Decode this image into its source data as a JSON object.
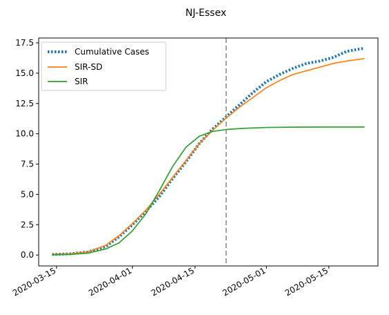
{
  "chart_data": {
    "type": "line",
    "title": "NJ-Essex",
    "xlabel": "",
    "ylabel": "",
    "x_start": "2020-03-14",
    "x_end": "2020-05-23",
    "xlim": [
      "2020-03-11",
      "2020-05-26"
    ],
    "ylim": [
      -0.9,
      17.9
    ],
    "y_ticks": [
      0.0,
      2.5,
      5.0,
      7.5,
      10.0,
      12.5,
      15.0,
      17.5
    ],
    "y_tick_labels": [
      "0.0",
      "2.5",
      "5.0",
      "7.5",
      "10.0",
      "12.5",
      "15.0",
      "17.5"
    ],
    "x_ticks": [
      "2020-03-15",
      "2020-04-01",
      "2020-04-15",
      "2020-05-01",
      "2020-05-15"
    ],
    "vline": {
      "x": "2020-04-22",
      "color": "#7f7f7f",
      "style": "dashed"
    },
    "legend_position": "top-left",
    "grid": false,
    "series": [
      {
        "name": "Cumulative Cases",
        "color": "#1f77b4",
        "style": "dotted",
        "points": [
          [
            "2020-03-14",
            0.05
          ],
          [
            "2020-03-18",
            0.1
          ],
          [
            "2020-03-22",
            0.25
          ],
          [
            "2020-03-26",
            0.7
          ],
          [
            "2020-03-29",
            1.5
          ],
          [
            "2020-04-01",
            2.5
          ],
          [
            "2020-04-04",
            3.6
          ],
          [
            "2020-04-07",
            4.8
          ],
          [
            "2020-04-10",
            6.3
          ],
          [
            "2020-04-13",
            7.7
          ],
          [
            "2020-04-16",
            9.2
          ],
          [
            "2020-04-19",
            10.4
          ],
          [
            "2020-04-22",
            11.4
          ],
          [
            "2020-04-25",
            12.4
          ],
          [
            "2020-04-28",
            13.4
          ],
          [
            "2020-05-01",
            14.3
          ],
          [
            "2020-05-04",
            14.9
          ],
          [
            "2020-05-07",
            15.4
          ],
          [
            "2020-05-10",
            15.8
          ],
          [
            "2020-05-13",
            16.0
          ],
          [
            "2020-05-16",
            16.3
          ],
          [
            "2020-05-19",
            16.8
          ],
          [
            "2020-05-22",
            17.0
          ],
          [
            "2020-05-23",
            17.05
          ]
        ]
      },
      {
        "name": "SIR-SD",
        "color": "#ff7f0e",
        "style": "solid",
        "points": [
          [
            "2020-03-14",
            0.05
          ],
          [
            "2020-03-18",
            0.1
          ],
          [
            "2020-03-22",
            0.25
          ],
          [
            "2020-03-26",
            0.8
          ],
          [
            "2020-03-29",
            1.6
          ],
          [
            "2020-04-01",
            2.6
          ],
          [
            "2020-04-04",
            3.7
          ],
          [
            "2020-04-07",
            5.0
          ],
          [
            "2020-04-10",
            6.4
          ],
          [
            "2020-04-13",
            7.8
          ],
          [
            "2020-04-16",
            9.2
          ],
          [
            "2020-04-19",
            10.3
          ],
          [
            "2020-04-22",
            11.3
          ],
          [
            "2020-04-25",
            12.2
          ],
          [
            "2020-04-28",
            13.0
          ],
          [
            "2020-05-01",
            13.8
          ],
          [
            "2020-05-04",
            14.4
          ],
          [
            "2020-05-07",
            14.9
          ],
          [
            "2020-05-10",
            15.2
          ],
          [
            "2020-05-13",
            15.5
          ],
          [
            "2020-05-16",
            15.8
          ],
          [
            "2020-05-19",
            16.0
          ],
          [
            "2020-05-23",
            16.2
          ]
        ]
      },
      {
        "name": "SIR",
        "color": "#2ca02c",
        "style": "solid",
        "points": [
          [
            "2020-03-14",
            0.02
          ],
          [
            "2020-03-18",
            0.05
          ],
          [
            "2020-03-22",
            0.15
          ],
          [
            "2020-03-26",
            0.5
          ],
          [
            "2020-03-29",
            1.0
          ],
          [
            "2020-04-01",
            2.0
          ],
          [
            "2020-04-04",
            3.4
          ],
          [
            "2020-04-07",
            5.3
          ],
          [
            "2020-04-10",
            7.3
          ],
          [
            "2020-04-13",
            8.9
          ],
          [
            "2020-04-16",
            9.8
          ],
          [
            "2020-04-19",
            10.2
          ],
          [
            "2020-04-22",
            10.35
          ],
          [
            "2020-04-26",
            10.45
          ],
          [
            "2020-05-01",
            10.52
          ],
          [
            "2020-05-08",
            10.55
          ],
          [
            "2020-05-15",
            10.56
          ],
          [
            "2020-05-23",
            10.56
          ]
        ]
      }
    ]
  }
}
